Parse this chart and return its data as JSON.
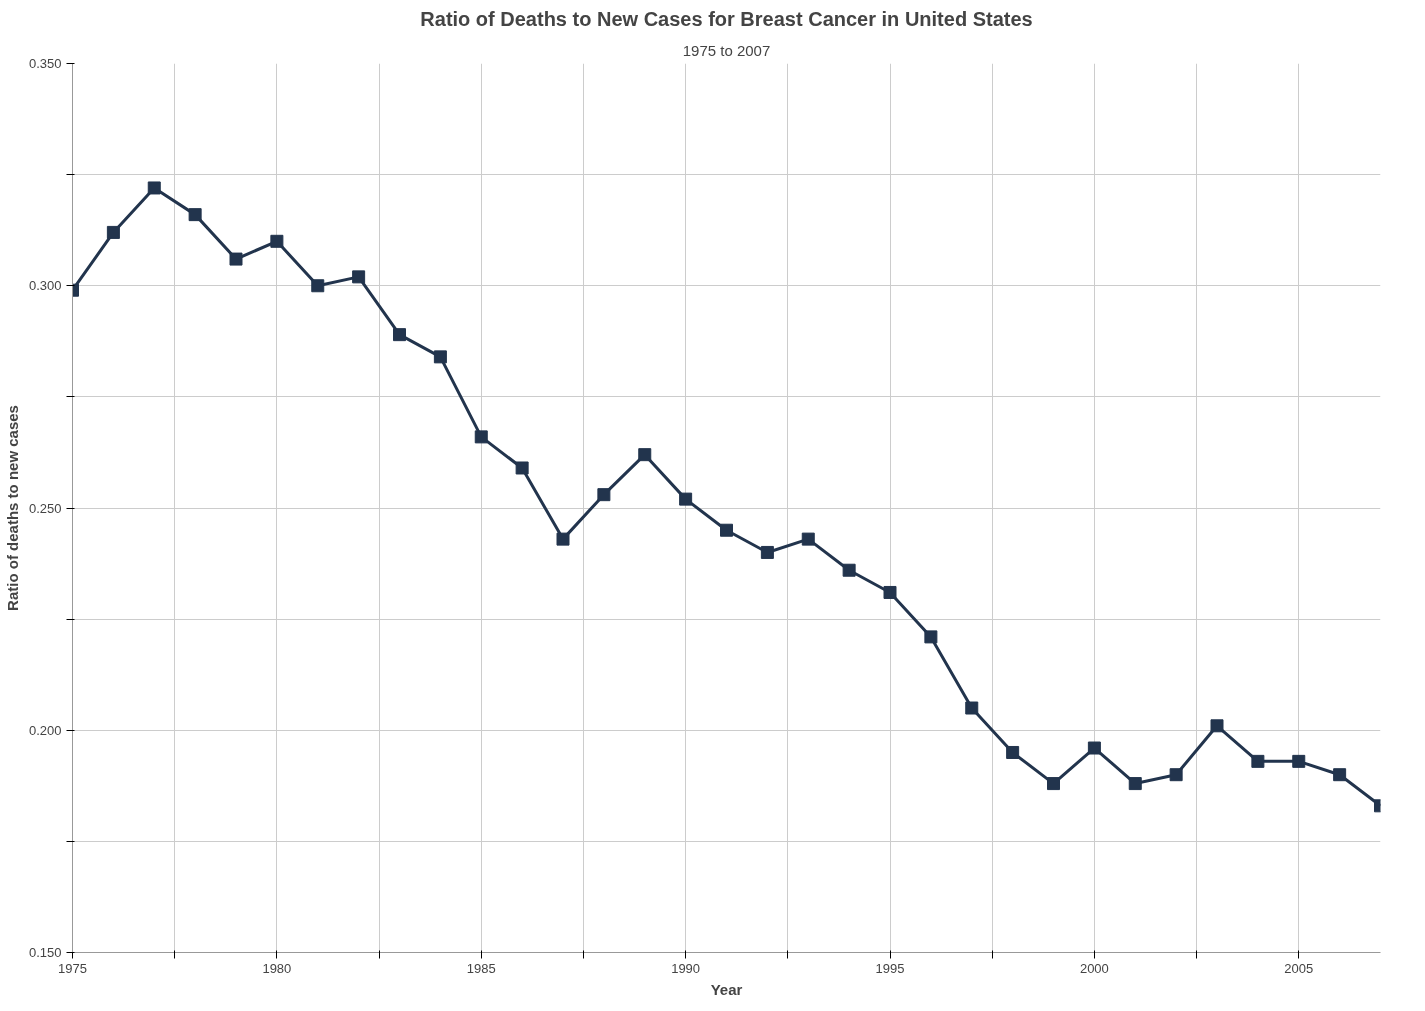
{
  "chart_data": {
    "type": "line",
    "title": "Ratio of Deaths to New Cases for Breast Cancer in United States",
    "subtitle": "1975 to 2007",
    "xlabel": "Year",
    "ylabel": "Ratio of deaths to new cases",
    "x": [
      1975,
      1976,
      1977,
      1978,
      1979,
      1980,
      1981,
      1982,
      1983,
      1984,
      1985,
      1986,
      1987,
      1988,
      1989,
      1990,
      1991,
      1992,
      1993,
      1994,
      1995,
      1996,
      1997,
      1998,
      1999,
      2000,
      2001,
      2002,
      2003,
      2004,
      2005,
      2006,
      2007
    ],
    "series": [
      {
        "color": "#22344d",
        "values": [
          0.299,
          0.312,
          0.322,
          0.316,
          0.306,
          0.31,
          0.3,
          0.302,
          0.289,
          0.284,
          0.266,
          0.259,
          0.243,
          0.253,
          0.262,
          0.252,
          0.245,
          0.24,
          0.243,
          0.236,
          0.231,
          0.221,
          0.205,
          0.195,
          0.188,
          0.196,
          0.188,
          0.19,
          0.201,
          0.193,
          0.193,
          0.19,
          0.183
        ]
      }
    ],
    "xlim": [
      1975,
      2007
    ],
    "ylim": [
      0.15,
      0.35
    ],
    "xticks": [
      {
        "value": 1975,
        "label": "1975"
      },
      {
        "value": 1977.5,
        "label": null
      },
      {
        "value": 1980,
        "label": "1980"
      },
      {
        "value": 1982.5,
        "label": null
      },
      {
        "value": 1985,
        "label": "1985"
      },
      {
        "value": 1987.5,
        "label": null
      },
      {
        "value": 1990,
        "label": "1990"
      },
      {
        "value": 1992.5,
        "label": null
      },
      {
        "value": 1995,
        "label": "1995"
      },
      {
        "value": 1997.5,
        "label": null
      },
      {
        "value": 2000,
        "label": "2000"
      },
      {
        "value": 2002.5,
        "label": null
      },
      {
        "value": 2005,
        "label": "2005"
      }
    ],
    "yticks": [
      {
        "value": 0.15,
        "label": "0.150"
      },
      {
        "value": 0.175,
        "label": null
      },
      {
        "value": 0.2,
        "label": "0.200"
      },
      {
        "value": 0.225,
        "label": null
      },
      {
        "value": 0.25,
        "label": "0.250"
      },
      {
        "value": 0.275,
        "label": null
      },
      {
        "value": 0.3,
        "label": "0.300"
      },
      {
        "value": 0.325,
        "label": null
      },
      {
        "value": 0.35,
        "label": "0.350"
      }
    ],
    "grid": true,
    "marker": "square",
    "line_style": "solid"
  }
}
